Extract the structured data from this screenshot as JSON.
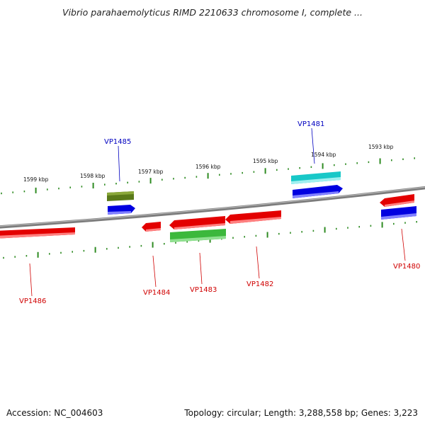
{
  "title": "Vibrio parahaemolyticus RIMD 2210633 chromosome I, complete ...",
  "footer": {
    "accession": "Accession: NC_004603",
    "summary": "Topology: circular; Length: 3,288,558 bp; Genes: 3,223"
  },
  "kbp_labels": [
    "1599 kbp",
    "1598 kbp",
    "1597 kbp",
    "1596 kbp",
    "1595 kbp",
    "1594 kbp",
    "1593 kbp"
  ],
  "gene_labels": [
    "VP1485",
    "VP1481",
    "VP1486",
    "VP1484",
    "VP1483",
    "VP1482",
    "VP1480"
  ],
  "colors": {
    "backbone": "#8a8a8a",
    "tick": "#2e8b22",
    "gene_red": "#e30000",
    "gene_blue": "#0000e0",
    "gene_green": "#3cb83c",
    "gene_olive": "#5a7a1a",
    "gene_cyan": "#18c8c8",
    "label_blue": "#0000c0",
    "label_red": "#d00000"
  }
}
